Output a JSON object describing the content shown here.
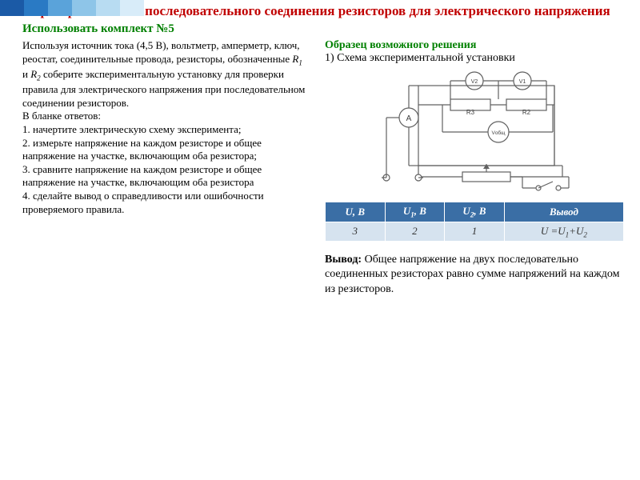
{
  "decoration_colors": [
    "#1b5aa6",
    "#2a7ac4",
    "#5aa3da",
    "#8ec5e8",
    "#b8dcf2",
    "#d8ecf9"
  ],
  "title": {
    "text": "Проверка законов последовательного соединения резисторов для электрического напряжения",
    "color": "#c00000",
    "fontsize": 17
  },
  "subtitle": {
    "text": "Использовать комплект №5",
    "color": "#008000",
    "fontsize": 15
  },
  "task": {
    "fontsize": 13,
    "color": "#000000",
    "lines": [
      "Используя источник тока (4,5 В), вольтметр, амперметр, ключ, реостат, соединительные провода, резисторы, обозначенные R₁ и R₂ соберите экспериментальную установку для проверки правила для электрического напряжения при последовательном соединении резисторов.",
      "В бланке ответов:",
      "1. начертите электрическую схему эксперимента;",
      "2. измерьте напряжение на каждом резисторе и общее напряжение на участке, включающим оба резистора;",
      "3. сравните напряжение на каждом резисторе и общее напряжение на участке, включающим оба резистора",
      "4. сделайте вывод о справедливости или ошибочности проверяемого правила."
    ]
  },
  "solution_header": {
    "label": "Образец возможного решения",
    "color": "#008000",
    "line1": "1) Схема экспериментальной установки",
    "fontsize": 14
  },
  "diagram": {
    "stroke": "#606060",
    "stroke_width": 1.2,
    "labels": {
      "A": "A",
      "V1": "V1",
      "V2": "V2",
      "Vobsh": "Vобщ",
      "R2": "R2",
      "R3": "R3"
    }
  },
  "table": {
    "header_bg": "#3a6ea5",
    "header_fg": "#ffffff",
    "row_bg": "#d6e3ef",
    "row_fg": "#333333",
    "fontsize": 13,
    "columns": [
      "U, В",
      "U₁, В",
      "U₂, В",
      "Вывод"
    ],
    "rows": [
      [
        "3",
        "2",
        "1",
        "U =U₁+U₂"
      ]
    ],
    "col_widths": [
      "20%",
      "20%",
      "20%",
      "40%"
    ]
  },
  "conclusion": {
    "label": "Вывод:",
    "text": "Общее напряжение на двух последовательно соединенных резисторах равно сумме напряжений на каждом из резисторов.",
    "fontsize": 14
  }
}
